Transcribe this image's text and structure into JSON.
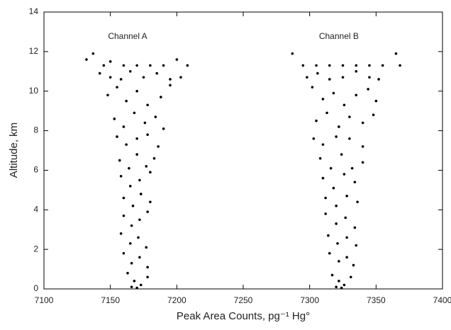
{
  "chart_data": {
    "type": "scatter",
    "xlabel": "Peak Area Counts, pg⁻¹ Hg°",
    "ylabel": "Altitude, km",
    "xlim": [
      7100,
      7400
    ],
    "xticks": [
      7100,
      7150,
      7200,
      7250,
      7300,
      7350,
      7400
    ],
    "ylim": [
      0,
      14
    ],
    "yticks": [
      0,
      2,
      4,
      6,
      8,
      10,
      12,
      14
    ],
    "grid": false,
    "annotations": [
      {
        "text": "Channel A",
        "x": 7163,
        "y": 12.75
      },
      {
        "text": "Channel B",
        "x": 7322,
        "y": 12.75
      }
    ],
    "series": [
      {
        "color": "#000000",
        "x": [
          7132,
          7137,
          7145,
          7150,
          7160,
          7170,
          7180,
          7190,
          7200,
          7208,
          7142,
          7150,
          7158,
          7165,
          7175,
          7185,
          7195,
          7203,
          7148,
          7155,
          7162,
          7170,
          7178,
          7188,
          7195,
          7153,
          7160,
          7168,
          7176,
          7184,
          7190,
          7155,
          7162,
          7170,
          7178,
          7186,
          7157,
          7164,
          7170,
          7177,
          7183,
          7158,
          7165,
          7172,
          7180,
          7160,
          7167,
          7173,
          7180,
          7160,
          7166,
          7172,
          7178,
          7158,
          7165,
          7171,
          7177,
          7160,
          7166,
          7172,
          7178,
          7163,
          7168,
          7173,
          7178,
          7170,
          7166
        ],
        "y": [
          11.6,
          11.9,
          11.3,
          11.5,
          11.3,
          11.3,
          11.3,
          11.3,
          11.6,
          11.3,
          10.9,
          10.7,
          10.6,
          11.0,
          10.7,
          10.9,
          10.6,
          10.7,
          9.8,
          10.2,
          9.5,
          10.0,
          9.3,
          9.7,
          10.3,
          8.6,
          8.2,
          8.9,
          8.4,
          8.7,
          8.1,
          7.7,
          7.3,
          7.6,
          7.8,
          7.2,
          6.5,
          6.1,
          6.8,
          6.2,
          6.6,
          5.7,
          5.2,
          5.5,
          5.9,
          4.6,
          4.2,
          4.8,
          4.4,
          3.7,
          3.2,
          3.5,
          3.9,
          2.8,
          2.3,
          2.6,
          2.1,
          1.8,
          1.3,
          1.6,
          1.1,
          0.8,
          0.4,
          0.2,
          0.6,
          0.05,
          0.1
        ]
      },
      {
        "color": "#000000",
        "x": [
          7287,
          7295,
          7305,
          7315,
          7325,
          7335,
          7345,
          7355,
          7365,
          7368,
          7298,
          7306,
          7315,
          7325,
          7335,
          7345,
          7352,
          7302,
          7310,
          7318,
          7326,
          7335,
          7344,
          7350,
          7305,
          7313,
          7322,
          7330,
          7340,
          7348,
          7303,
          7310,
          7320,
          7330,
          7340,
          7308,
          7316,
          7324,
          7332,
          7340,
          7310,
          7318,
          7326,
          7334,
          7312,
          7320,
          7328,
          7336,
          7312,
          7320,
          7327,
          7334,
          7314,
          7321,
          7328,
          7335,
          7315,
          7322,
          7328,
          7333,
          7317,
          7322,
          7326,
          7331,
          7324,
          7320
        ],
        "y": [
          11.9,
          11.3,
          11.3,
          11.3,
          11.3,
          11.3,
          11.3,
          11.3,
          11.9,
          11.3,
          10.7,
          10.9,
          10.6,
          10.7,
          11.0,
          10.7,
          10.6,
          10.2,
          9.6,
          9.9,
          9.3,
          9.8,
          10.1,
          9.5,
          8.5,
          8.9,
          8.2,
          8.7,
          8.4,
          8.8,
          7.6,
          7.3,
          7.7,
          7.6,
          7.2,
          6.6,
          6.1,
          6.8,
          6.1,
          6.4,
          5.6,
          5.1,
          5.8,
          5.4,
          4.6,
          4.2,
          4.7,
          4.4,
          3.8,
          3.3,
          3.6,
          3.1,
          2.7,
          2.3,
          2.6,
          2.2,
          1.8,
          1.4,
          1.6,
          1.2,
          0.7,
          0.4,
          0.2,
          0.6,
          0.05,
          0.1
        ]
      }
    ]
  }
}
